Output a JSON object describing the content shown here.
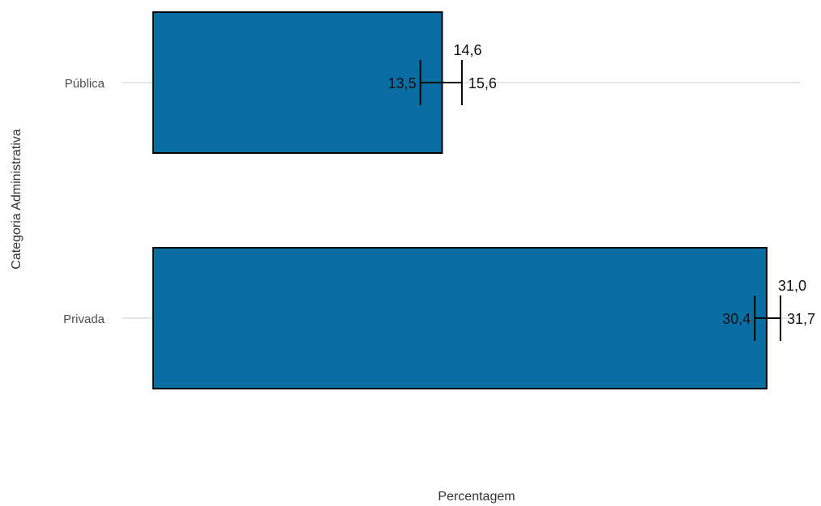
{
  "chart_data": {
    "type": "bar",
    "orientation": "horizontal",
    "xlabel": "Percentagem",
    "ylabel": "Categoria Administrativa",
    "categories": [
      "Pública",
      "Privada"
    ],
    "values": [
      14.6,
      31.0
    ],
    "value_labels": [
      "14,6",
      "31,0"
    ],
    "ci_low": [
      13.5,
      30.4
    ],
    "ci_low_labels": [
      "13,5",
      "30,4"
    ],
    "ci_high": [
      15.6,
      31.7
    ],
    "ci_high_labels": [
      "15,6",
      "31,7"
    ],
    "xlim": [
      0,
      32.6
    ],
    "grid": "horizontal-major",
    "legend": "none",
    "x_tick_labels_shown": false,
    "bar_color": "#0a6ea3",
    "bar_outline_color": "#000000",
    "grid_color": "#e6e6e6"
  }
}
